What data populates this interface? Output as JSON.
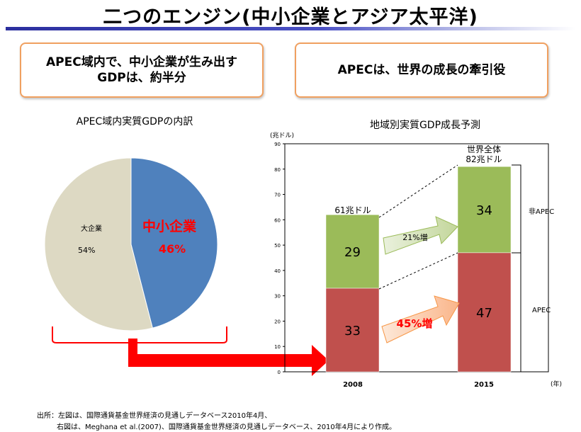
{
  "slide": {
    "title": "二つのエンジン(中小企業とアジア太平洋)",
    "callout_left_line1": "APEC域内で、中小企業が生み出す",
    "callout_left_line2": "GDPは、約半分",
    "callout_right": "APECは、世界の成長の牽引役",
    "source_line1": "出所：左図は、国際通貨基金世界経済の見通しデータベース2010年4月、",
    "source_line2": "右図は、Meghana et al.(2007)、国際通貨基金世界経済の見通しデータベース、2010年4月により作成。"
  },
  "colors": {
    "sme": "#4f81bd",
    "large": "#ddd9c3",
    "non_apec": "#9bbb59",
    "apec": "#c0504d",
    "highlight": "#ff0000"
  },
  "chart_data": [
    {
      "type": "pie",
      "title": "APEC域内実質GDPの内訳",
      "slices": [
        {
          "label": "中小企業",
          "value": 46,
          "value_label": "46%",
          "color": "#4f81bd"
        },
        {
          "label": "大企業",
          "value": 54,
          "value_label": "54%",
          "color": "#ddd9c3"
        }
      ]
    },
    {
      "type": "bar",
      "stacked": true,
      "title": "地域別実質GDP成長予測",
      "ylabel": "(兆ドル)",
      "xlabel": "(年)",
      "ylim": [
        0,
        90
      ],
      "yticks": [
        0,
        10,
        20,
        30,
        40,
        50,
        60,
        70,
        80,
        90
      ],
      "categories": [
        "2008",
        "2015"
      ],
      "series": [
        {
          "name": "APEC",
          "values": [
            33,
            47
          ],
          "color": "#c0504d"
        },
        {
          "name": "非APEC",
          "values": [
            29,
            34
          ],
          "color": "#9bbb59"
        }
      ],
      "totals": [
        "61兆ドル",
        "82兆ドル"
      ],
      "total_caption_2015": "世界全体",
      "growth_arrows": [
        {
          "series": "非APEC",
          "label": "21%増"
        },
        {
          "series": "APEC",
          "label": "45%増"
        }
      ]
    }
  ]
}
